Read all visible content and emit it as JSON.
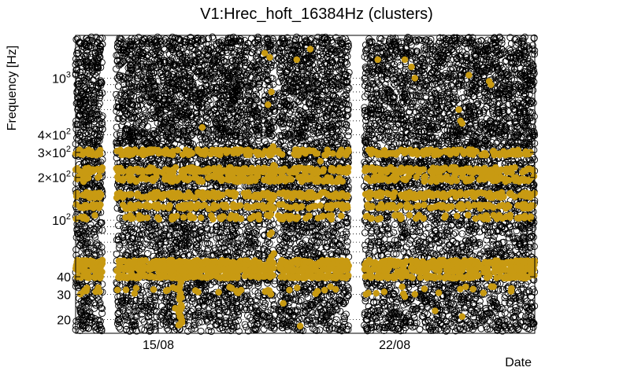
{
  "chart_data": {
    "type": "scatter",
    "title": "V1:Hrec_hoft_16384Hz (clusters)",
    "xlabel": "Date",
    "ylabel": "Frequency [Hz]",
    "y_scale": "log",
    "ylim": [
      16,
      2000
    ],
    "x_unit": "days (August)",
    "xlim": [
      12.55,
      26.15
    ],
    "x_ticks": [
      {
        "value": 15,
        "label": "15/08"
      },
      {
        "value": 22,
        "label": "22/08"
      }
    ],
    "y_ticks": [
      {
        "value": 20,
        "label": "20",
        "kind": "plain"
      },
      {
        "value": 30,
        "label": "30",
        "kind": "plain"
      },
      {
        "value": 40,
        "label": "40",
        "kind": "plain"
      },
      {
        "value": 100,
        "label": "10",
        "exp": "2",
        "kind": "pow"
      },
      {
        "value": 200,
        "label": "2×10",
        "exp": "2",
        "kind": "pow"
      },
      {
        "value": 300,
        "label": "3×10",
        "exp": "2",
        "kind": "pow"
      },
      {
        "value": 400,
        "label": "4×10",
        "exp": "2",
        "kind": "pow"
      },
      {
        "value": 1000,
        "label": "10",
        "exp": "3",
        "kind": "pow"
      }
    ],
    "y_minor_gridlines": [
      50,
      60,
      70,
      80,
      90,
      500,
      600,
      700,
      800,
      900
    ],
    "grid": "dotted",
    "series": [
      {
        "name": "",
        "marker": "open-circle",
        "color": "#000000"
      },
      {
        "name": "",
        "marker": "filled-circle",
        "color": "#c89a12"
      }
    ],
    "data_gaps": [
      [
        13.35,
        13.75
      ],
      [
        17.48,
        17.53
      ],
      [
        18.0,
        18.08
      ],
      [
        18.45,
        18.55
      ],
      [
        20.65,
        21.1
      ]
    ],
    "highlighted_points": [
      [
        18.15,
        1500
      ],
      [
        18.3,
        1400
      ],
      [
        18.35,
        800
      ],
      [
        18.25,
        650
      ],
      [
        19.1,
        1350
      ],
      [
        19.5,
        1600
      ],
      [
        21.5,
        1350
      ],
      [
        22.3,
        1350
      ],
      [
        22.5,
        1200
      ],
      [
        22.6,
        1000
      ],
      [
        24.2,
        1050
      ],
      [
        24.8,
        950
      ],
      [
        24.85,
        900
      ],
      [
        23.9,
        600
      ],
      [
        23.95,
        500
      ],
      [
        16.3,
        450
      ],
      [
        24.0,
        480
      ],
      [
        25.6,
        200
      ],
      [
        22.9,
        300
      ],
      [
        15.1,
        300
      ],
      [
        18.4,
        330
      ],
      [
        19.8,
        260
      ],
      [
        17.2,
        205
      ],
      [
        23.5,
        145
      ],
      [
        16.5,
        120
      ],
      [
        22.0,
        48
      ],
      [
        21.6,
        50
      ],
      [
        17.0,
        43
      ],
      [
        24.5,
        48
      ],
      [
        19.4,
        40
      ],
      [
        16.1,
        32
      ],
      [
        15.5,
        24
      ],
      [
        18.7,
        26
      ],
      [
        18.5,
        18
      ],
      [
        19.2,
        18
      ],
      [
        24.0,
        21
      ],
      [
        15.7,
        19
      ],
      [
        23.2,
        23
      ],
      [
        22.3,
        29
      ],
      [
        20.1,
        34
      ]
    ]
  }
}
